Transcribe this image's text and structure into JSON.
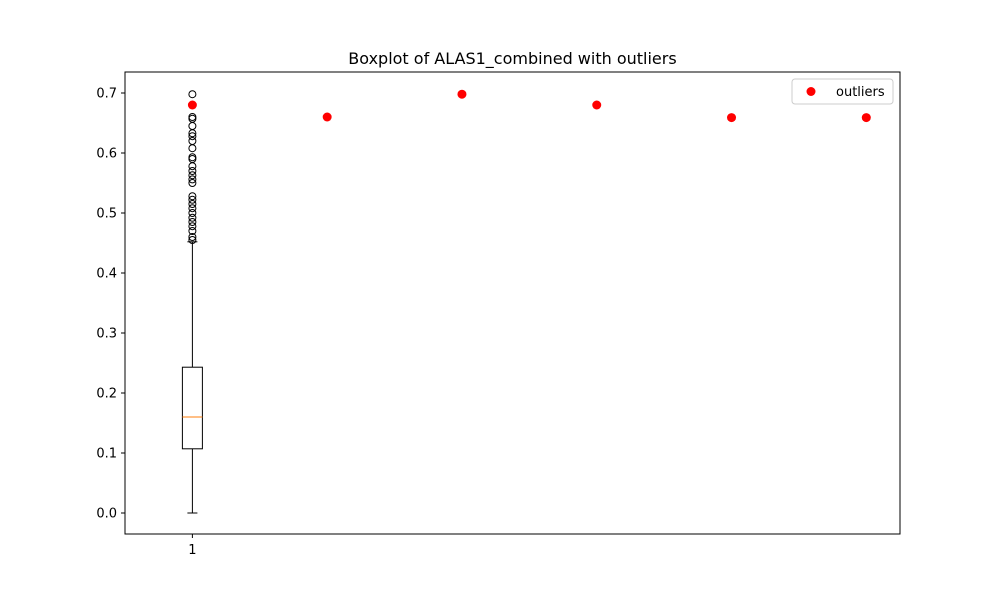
{
  "chart_data": {
    "type": "boxplot",
    "title": "Boxplot of ALAS1_combined with outliers",
    "xlabel": "",
    "ylabel": "",
    "x_ticks": [
      "1"
    ],
    "y_ticks": [
      "0.0",
      "0.1",
      "0.2",
      "0.3",
      "0.4",
      "0.5",
      "0.6",
      "0.7"
    ],
    "ylim": [
      -0.035,
      0.735
    ],
    "grid": false,
    "legend": {
      "position": "top-right",
      "entries": [
        "outliers"
      ]
    },
    "box": {
      "category": "1",
      "whisker_low": 0.0,
      "q1": 0.107,
      "median": 0.16,
      "q3": 0.243,
      "whisker_high": 0.452,
      "fliers": [
        0.455,
        0.46,
        0.47,
        0.478,
        0.485,
        0.492,
        0.5,
        0.508,
        0.515,
        0.522,
        0.528,
        0.55,
        0.556,
        0.563,
        0.57,
        0.578,
        0.59,
        0.593,
        0.608,
        0.62,
        0.628,
        0.633,
        0.645,
        0.657,
        0.66,
        0.68,
        0.698
      ]
    },
    "series": [
      {
        "name": "outliers",
        "color": "#ff0000",
        "points": [
          {
            "x": 1,
            "y": 0.68
          },
          {
            "x": 2,
            "y": 0.66
          },
          {
            "x": 3,
            "y": 0.698
          },
          {
            "x": 4,
            "y": 0.68
          },
          {
            "x": 5,
            "y": 0.659
          },
          {
            "x": 6,
            "y": 0.659
          }
        ]
      }
    ],
    "colors": {
      "median": "#ff7f0e",
      "box": "#000000",
      "outlier_marker": "#ff0000"
    }
  }
}
